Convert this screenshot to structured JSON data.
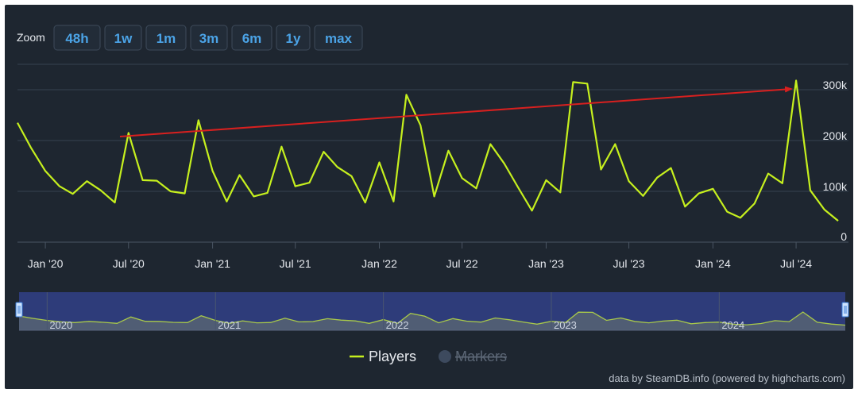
{
  "zoom": {
    "label": "Zoom",
    "buttons": [
      "48h",
      "1w",
      "1m",
      "3m",
      "6m",
      "1y",
      "max"
    ]
  },
  "legend": {
    "players_label": "Players",
    "markers_label": "Markers"
  },
  "credit": "data by SteamDB.info (powered by highcharts.com)",
  "colors": {
    "series": "#c6f01e",
    "trend_arrow": "#d8201f",
    "background": "#1e2630",
    "navigator_fill": "#2e3c7a",
    "zoom_text": "#4ba3e6"
  },
  "chart_data": {
    "type": "line",
    "title": "",
    "xlabel": "",
    "ylabel": "",
    "ylim": [
      0,
      350000
    ],
    "x_ticks": [
      "Jan '20",
      "Jul '20",
      "Jan '21",
      "Jul '21",
      "Jan '22",
      "Jul '22",
      "Jan '23",
      "Jul '23",
      "Jan '24",
      "Jul '24"
    ],
    "y_ticks": [
      {
        "value": 0,
        "label": "0"
      },
      {
        "value": 100000,
        "label": "100k"
      },
      {
        "value": 200000,
        "label": "200k"
      },
      {
        "value": 300000,
        "label": "300k"
      }
    ],
    "grid": true,
    "legend_position": "bottom-center",
    "series": [
      {
        "name": "Players",
        "points": [
          [
            "2019-11-01",
            235000
          ],
          [
            "2019-12-01",
            185000
          ],
          [
            "2020-01-01",
            140000
          ],
          [
            "2020-02-01",
            110000
          ],
          [
            "2020-03-01",
            95000
          ],
          [
            "2020-04-01",
            120000
          ],
          [
            "2020-05-01",
            102000
          ],
          [
            "2020-06-01",
            78000
          ],
          [
            "2020-07-01",
            215000
          ],
          [
            "2020-08-01",
            122000
          ],
          [
            "2020-09-01",
            121000
          ],
          [
            "2020-10-01",
            100000
          ],
          [
            "2020-11-01",
            96000
          ],
          [
            "2020-12-01",
            240000
          ],
          [
            "2021-01-01",
            140000
          ],
          [
            "2021-02-01",
            80000
          ],
          [
            "2021-03-01",
            132000
          ],
          [
            "2021-04-01",
            90000
          ],
          [
            "2021-05-01",
            97000
          ],
          [
            "2021-06-01",
            188000
          ],
          [
            "2021-07-01",
            110000
          ],
          [
            "2021-08-01",
            117000
          ],
          [
            "2021-09-01",
            178000
          ],
          [
            "2021-10-01",
            148000
          ],
          [
            "2021-11-01",
            130000
          ],
          [
            "2021-12-01",
            78000
          ],
          [
            "2022-01-01",
            157000
          ],
          [
            "2022-02-01",
            80000
          ],
          [
            "2022-03-01",
            290000
          ],
          [
            "2022-04-01",
            230000
          ],
          [
            "2022-05-01",
            90000
          ],
          [
            "2022-06-01",
            180000
          ],
          [
            "2022-07-01",
            126000
          ],
          [
            "2022-08-01",
            106000
          ],
          [
            "2022-09-01",
            193000
          ],
          [
            "2022-10-01",
            155000
          ],
          [
            "2022-11-01",
            107000
          ],
          [
            "2022-12-01",
            62000
          ],
          [
            "2023-01-01",
            122000
          ],
          [
            "2023-02-01",
            98000
          ],
          [
            "2023-03-01",
            315000
          ],
          [
            "2023-04-01",
            312000
          ],
          [
            "2023-05-01",
            143000
          ],
          [
            "2023-06-01",
            193000
          ],
          [
            "2023-07-01",
            120000
          ],
          [
            "2023-08-01",
            91000
          ],
          [
            "2023-09-01",
            127000
          ],
          [
            "2023-10-01",
            146000
          ],
          [
            "2023-11-01",
            70000
          ],
          [
            "2023-12-01",
            96000
          ],
          [
            "2024-01-01",
            105000
          ],
          [
            "2024-02-01",
            60000
          ],
          [
            "2024-03-01",
            48000
          ],
          [
            "2024-04-01",
            76000
          ],
          [
            "2024-05-01",
            135000
          ],
          [
            "2024-06-01",
            116000
          ],
          [
            "2024-07-01",
            318000
          ],
          [
            "2024-08-01",
            102000
          ],
          [
            "2024-09-01",
            64000
          ],
          [
            "2024-10-01",
            42000
          ]
        ]
      }
    ],
    "navigator": {
      "year_labels": [
        "2020",
        "2021",
        "2022",
        "2023",
        "2024"
      ]
    }
  }
}
